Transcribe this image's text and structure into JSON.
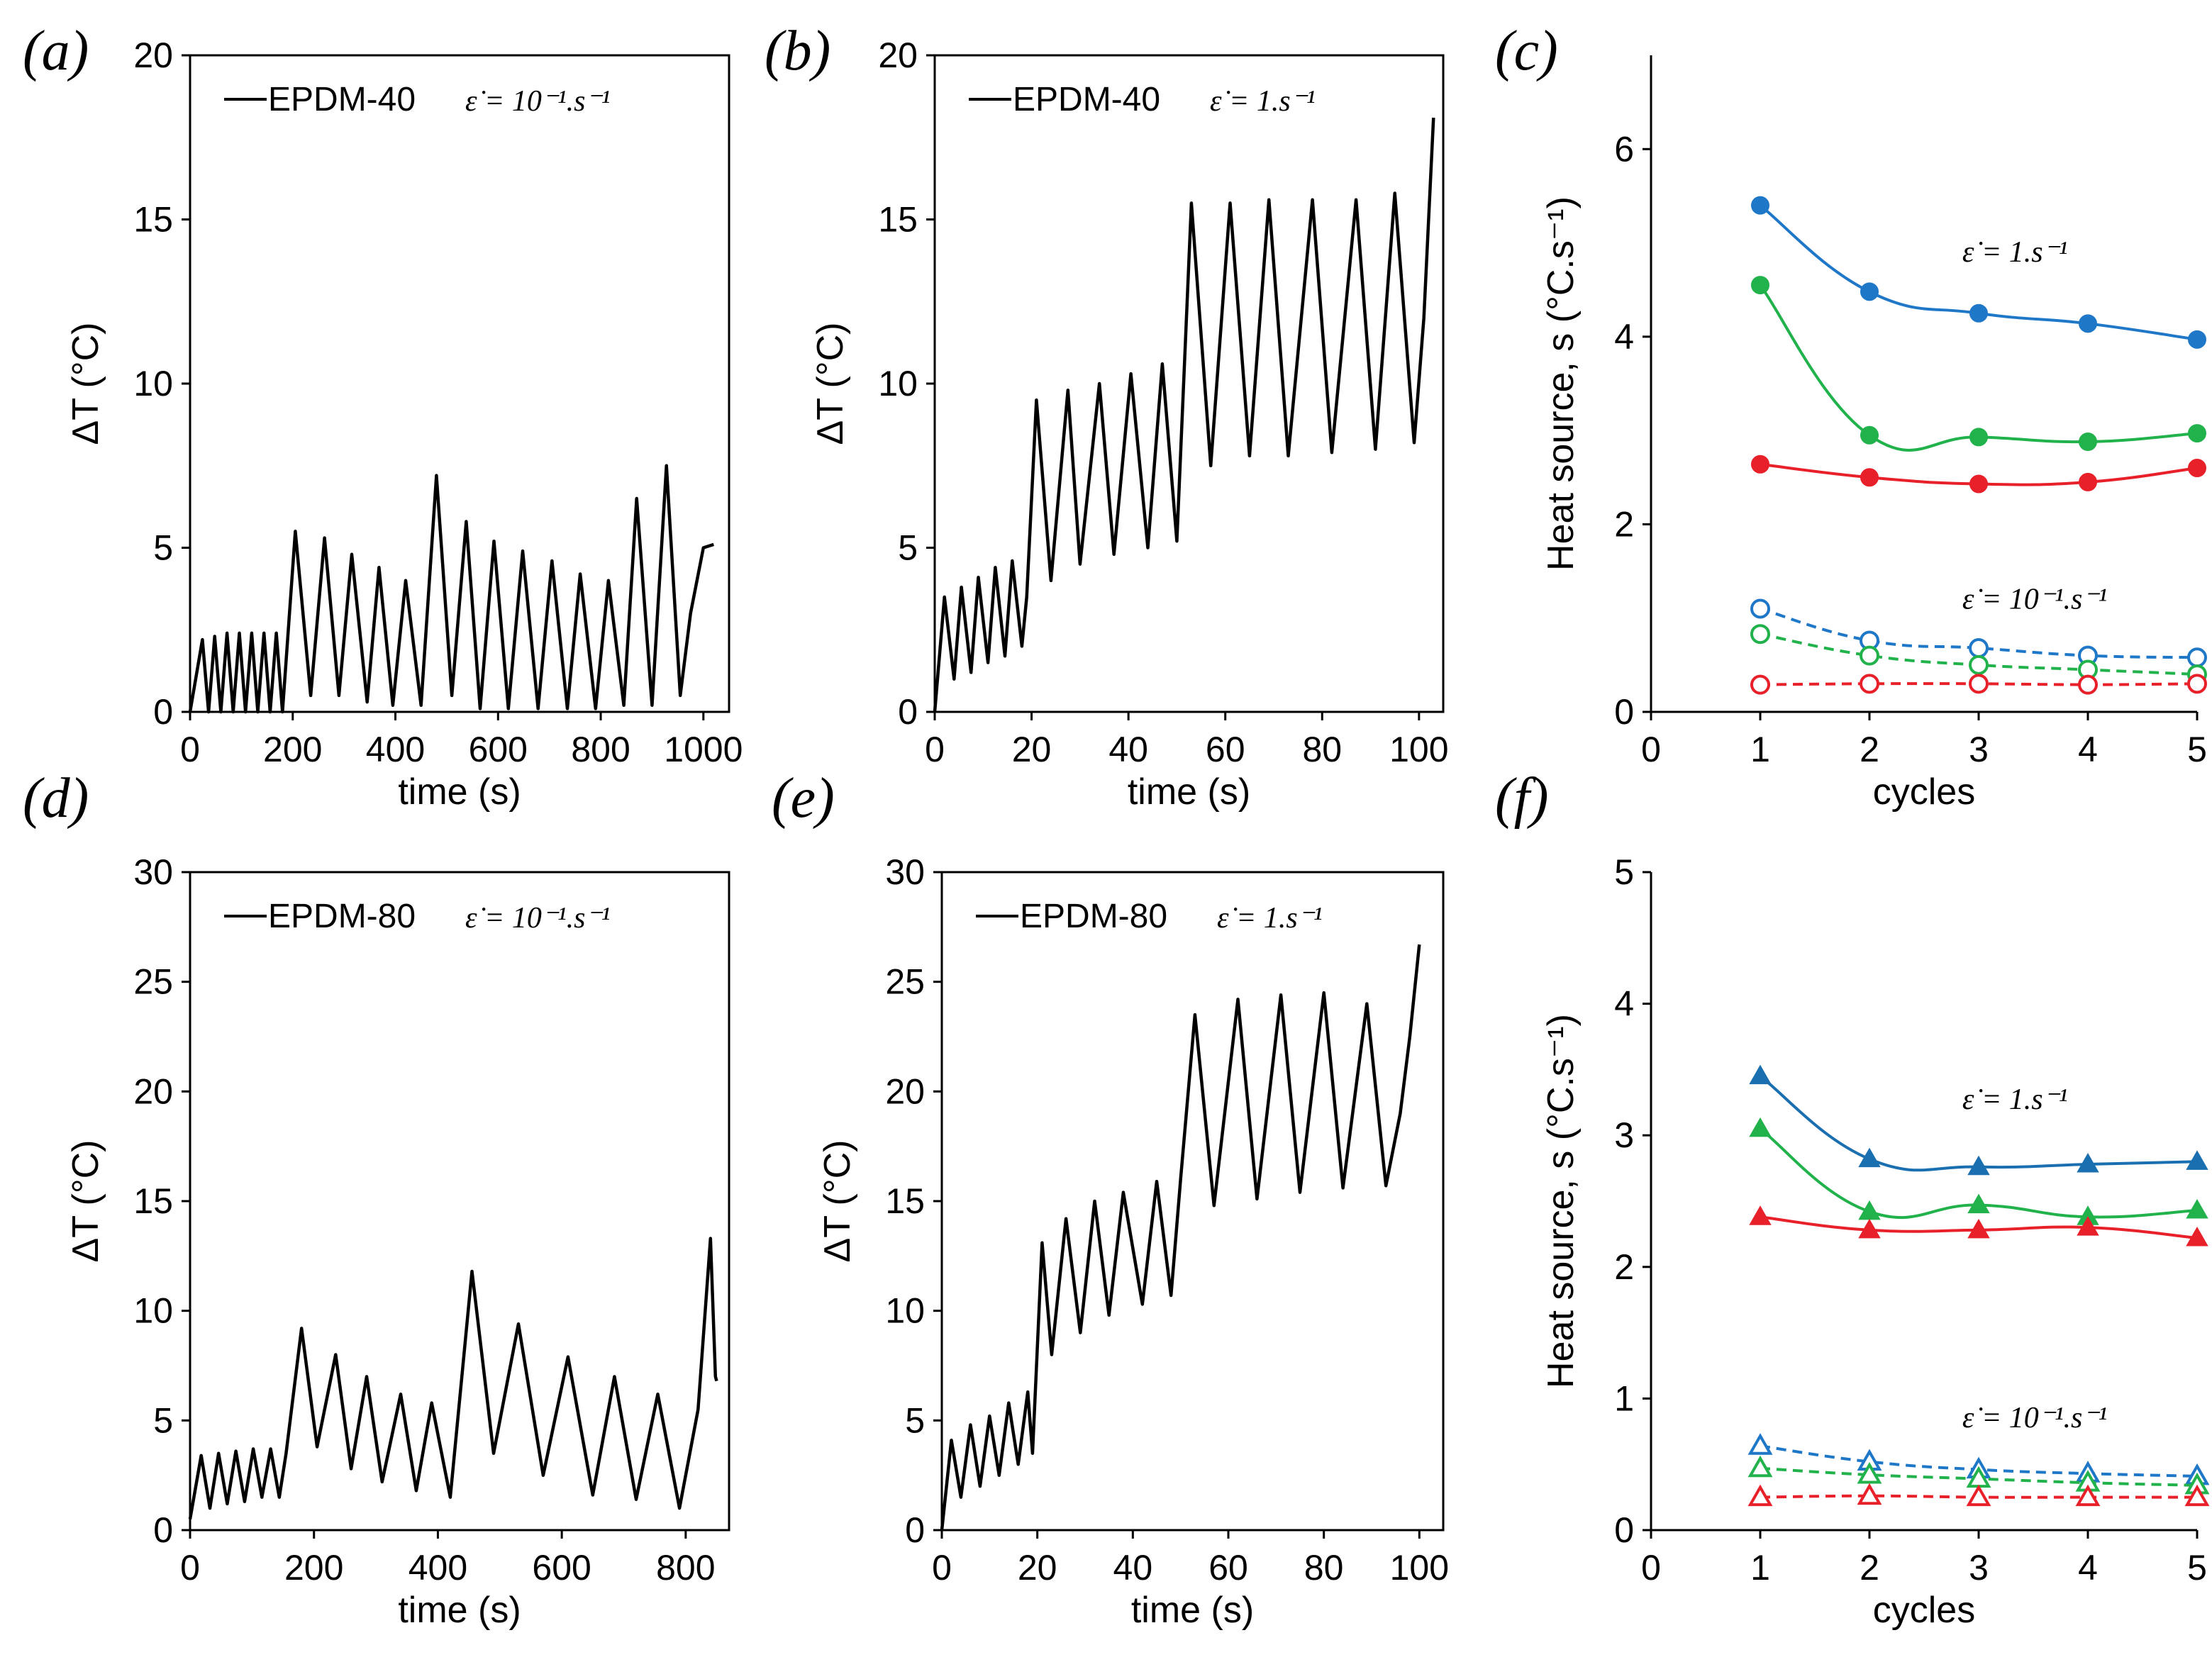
{
  "chart_data": [
    {
      "id": "a",
      "type": "line",
      "panel_label": "(a)",
      "legend": "EPDM-40",
      "strain_rate": "ε̇ = 10⁻¹.s⁻¹",
      "xlabel": "time (s)",
      "ylabel": "ΔT (°C)",
      "xlim": [
        0,
        1050
      ],
      "ylim": [
        0,
        20
      ],
      "xticks": [
        0,
        200,
        400,
        600,
        800,
        1000
      ],
      "yticks": [
        0,
        5,
        10,
        15,
        20
      ],
      "x": [
        0,
        24,
        36,
        48,
        60,
        72,
        84,
        96,
        108,
        120,
        132,
        144,
        156,
        168,
        180,
        205,
        235,
        262,
        290,
        315,
        345,
        368,
        395,
        420,
        450,
        480,
        510,
        538,
        565,
        592,
        620,
        648,
        678,
        705,
        735,
        760,
        790,
        815,
        845,
        870,
        900,
        928,
        955,
        975,
        1000,
        1020
      ],
      "y": [
        0,
        2.2,
        0,
        2.3,
        0,
        2.4,
        0,
        2.4,
        0,
        2.4,
        0,
        2.4,
        0,
        2.4,
        0,
        5.5,
        0.5,
        5.3,
        0.5,
        4.8,
        0.3,
        4.4,
        0.2,
        4.0,
        0.2,
        7.2,
        0.5,
        5.8,
        0.1,
        5.2,
        0.1,
        4.9,
        0.1,
        4.6,
        0.1,
        4.2,
        0.1,
        4.0,
        0.2,
        6.5,
        0.2,
        7.5,
        0.5,
        3.0,
        5.0,
        5.1
      ]
    },
    {
      "id": "b",
      "type": "line",
      "panel_label": "(b)",
      "legend": "EPDM-40",
      "strain_rate": "ε̇ = 1.s⁻¹",
      "xlabel": "time (s)",
      "ylabel": "ΔT (°C)",
      "xlim": [
        0,
        105
      ],
      "ylim": [
        0,
        20
      ],
      "xticks": [
        0,
        20,
        40,
        60,
        80,
        100
      ],
      "yticks": [
        0,
        5,
        10,
        15,
        20
      ],
      "x": [
        0,
        2,
        4,
        5.5,
        7.5,
        9,
        11,
        12.5,
        14.5,
        16,
        18,
        19,
        21,
        24,
        27.5,
        30,
        34,
        37,
        40.5,
        44,
        47,
        50,
        53,
        57,
        61,
        65,
        69,
        73,
        78,
        82,
        87,
        91,
        95,
        99,
        101,
        103
      ],
      "y": [
        0,
        3.5,
        1,
        3.8,
        1.2,
        4.1,
        1.5,
        4.4,
        1.7,
        4.6,
        2,
        3.5,
        9.5,
        4,
        9.8,
        4.5,
        10,
        4.8,
        10.3,
        5,
        10.6,
        5.2,
        15.5,
        7.5,
        15.5,
        7.8,
        15.6,
        7.8,
        15.6,
        7.9,
        15.6,
        8,
        15.8,
        8.2,
        12,
        18.1
      ]
    },
    {
      "id": "d",
      "type": "line",
      "panel_label": "(d)",
      "legend": "EPDM-80",
      "strain_rate": "ε̇ = 10⁻¹.s⁻¹",
      "xlabel": "time (s)",
      "ylabel": "ΔT (°C)",
      "xlim": [
        0,
        870
      ],
      "ylim": [
        0,
        30
      ],
      "xticks": [
        0,
        200,
        400,
        600,
        800
      ],
      "yticks": [
        0,
        5,
        10,
        15,
        20,
        25,
        30
      ],
      "x": [
        0,
        18,
        32,
        46,
        60,
        74,
        88,
        102,
        116,
        130,
        144,
        155,
        180,
        205,
        235,
        260,
        285,
        310,
        340,
        365,
        390,
        420,
        455,
        490,
        530,
        570,
        610,
        650,
        685,
        720,
        755,
        790,
        820,
        840,
        848,
        850
      ],
      "y": [
        0.5,
        3.4,
        1.0,
        3.5,
        1.2,
        3.6,
        1.3,
        3.7,
        1.5,
        3.7,
        1.5,
        3.5,
        9.2,
        3.8,
        8.0,
        2.8,
        7.0,
        2.2,
        6.2,
        1.8,
        5.8,
        1.5,
        11.8,
        3.5,
        9.4,
        2.5,
        7.9,
        1.6,
        7.0,
        1.4,
        6.2,
        1.0,
        5.5,
        13.3,
        7.0,
        6.8
      ]
    },
    {
      "id": "e",
      "type": "line",
      "panel_label": "(e)",
      "legend": "EPDM-80",
      "strain_rate": "ε̇ = 1.s⁻¹",
      "xlabel": "time (s)",
      "ylabel": "ΔT (°C)",
      "xlim": [
        0,
        105
      ],
      "ylim": [
        0,
        30
      ],
      "xticks": [
        0,
        20,
        40,
        60,
        80,
        100
      ],
      "yticks": [
        0,
        5,
        10,
        15,
        20,
        25,
        30
      ],
      "x": [
        0,
        2,
        4,
        6,
        8,
        10,
        12,
        14,
        16,
        18,
        19,
        21,
        23,
        26,
        29,
        32,
        35,
        38,
        42,
        45,
        48,
        50,
        53,
        57,
        62,
        66,
        71,
        75,
        80,
        84,
        89,
        93,
        96,
        98,
        100
      ],
      "y": [
        0,
        4.1,
        1.5,
        4.8,
        2,
        5.2,
        2.5,
        5.8,
        3,
        6.3,
        3.5,
        13.1,
        8,
        14.2,
        9,
        15,
        9.8,
        15.4,
        10.3,
        15.9,
        10.7,
        16,
        23.5,
        14.8,
        24.2,
        15.1,
        24.4,
        15.4,
        24.5,
        15.6,
        24.0,
        15.7,
        19,
        22.5,
        26.7
      ]
    },
    {
      "id": "c",
      "type": "scatter",
      "panel_label": "(c)",
      "xlabel": "cycles",
      "ylabel": "Heat source, s   (°C.s⁻¹)",
      "xlim": [
        0,
        5
      ],
      "ylim": [
        0,
        7
      ],
      "xticks": [
        0,
        1,
        2,
        3,
        4,
        5
      ],
      "yticks": [
        0,
        2,
        4,
        6
      ],
      "annotations": [
        "ε̇ = 1.s⁻¹",
        "ε̇ = 10⁻¹.s⁻¹"
      ],
      "x": [
        1,
        2,
        3,
        4,
        5
      ],
      "series": [
        {
          "name": "blue 1.s⁻¹",
          "color": "#1f77c8",
          "marker": "circle",
          "filled": true,
          "values": [
            5.4,
            4.48,
            4.25,
            4.14,
            3.97
          ]
        },
        {
          "name": "green 1.s⁻¹",
          "color": "#22b24c",
          "marker": "circle",
          "filled": true,
          "values": [
            4.55,
            2.95,
            2.93,
            2.88,
            2.97
          ]
        },
        {
          "name": "red 1.s⁻¹",
          "color": "#e8202a",
          "marker": "circle",
          "filled": true,
          "values": [
            2.64,
            2.5,
            2.43,
            2.45,
            2.6
          ]
        },
        {
          "name": "blue 10⁻¹.s⁻¹",
          "color": "#1f77c8",
          "marker": "circle",
          "filled": false,
          "values": [
            1.1,
            0.76,
            0.68,
            0.6,
            0.58
          ]
        },
        {
          "name": "green 10⁻¹.s⁻¹",
          "color": "#22b24c",
          "marker": "circle",
          "filled": false,
          "values": [
            0.83,
            0.6,
            0.5,
            0.45,
            0.4
          ]
        },
        {
          "name": "red 10⁻¹.s⁻¹",
          "color": "#e8202a",
          "marker": "circle",
          "filled": false,
          "values": [
            0.29,
            0.3,
            0.3,
            0.29,
            0.3
          ]
        }
      ]
    },
    {
      "id": "f",
      "type": "scatter",
      "panel_label": "(f)",
      "xlabel": "cycles",
      "ylabel": "Heat source, s   (°C.s⁻¹)",
      "xlim": [
        0,
        5
      ],
      "ylim": [
        0,
        5
      ],
      "xticks": [
        0,
        1,
        2,
        3,
        4,
        5
      ],
      "yticks": [
        0,
        1,
        2,
        3,
        4,
        5
      ],
      "annotations": [
        "ε̇ = 1.s⁻¹",
        "ε̇ = 10⁻¹.s⁻¹"
      ],
      "x": [
        1,
        2,
        3,
        4,
        5
      ],
      "series": [
        {
          "name": "blue 1.s⁻¹",
          "color": "#1a6fb0",
          "marker": "triangle",
          "filled": true,
          "values": [
            3.45,
            2.82,
            2.76,
            2.78,
            2.8
          ]
        },
        {
          "name": "green 1.s⁻¹",
          "color": "#22b24c",
          "marker": "triangle",
          "filled": true,
          "values": [
            3.05,
            2.42,
            2.47,
            2.38,
            2.43
          ]
        },
        {
          "name": "red 1.s⁻¹",
          "color": "#e8202a",
          "marker": "triangle",
          "filled": true,
          "values": [
            2.38,
            2.28,
            2.28,
            2.3,
            2.22
          ]
        },
        {
          "name": "blue 10⁻¹.s⁻¹",
          "color": "#1f77c8",
          "marker": "triangle",
          "filled": false,
          "values": [
            0.64,
            0.52,
            0.46,
            0.43,
            0.41
          ]
        },
        {
          "name": "green 10⁻¹.s⁻¹",
          "color": "#22b24c",
          "marker": "triangle",
          "filled": false,
          "values": [
            0.47,
            0.42,
            0.39,
            0.36,
            0.34
          ]
        },
        {
          "name": "red 10⁻¹.s⁻¹",
          "color": "#e8202a",
          "marker": "triangle",
          "filled": false,
          "values": [
            0.25,
            0.26,
            0.25,
            0.25,
            0.25
          ]
        }
      ]
    }
  ]
}
